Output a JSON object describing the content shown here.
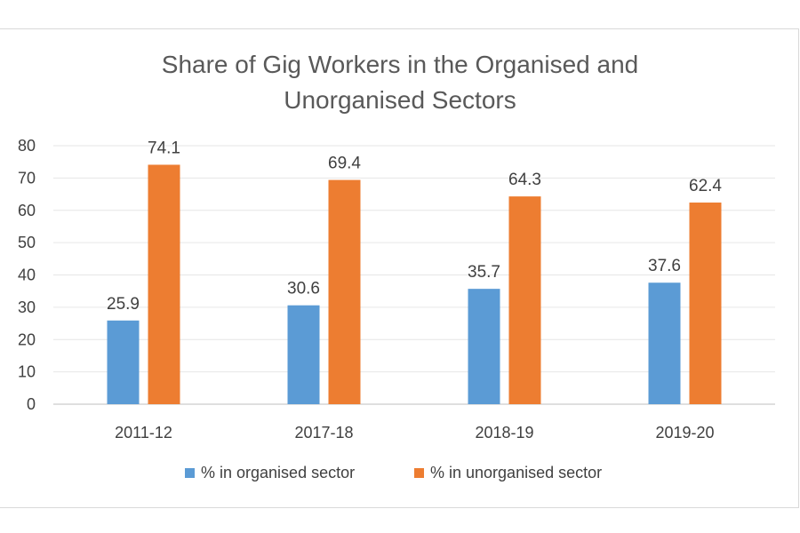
{
  "chart_data": {
    "type": "bar",
    "title_lines": [
      "Share of Gig Workers in the Organised and",
      "Unorganised Sectors"
    ],
    "categories": [
      "2011-12",
      "2017-18",
      "2018-19",
      "2019-20"
    ],
    "series": [
      {
        "name": "% in organised sector",
        "color": "#5b9bd5",
        "values": [
          25.9,
          30.6,
          35.7,
          37.6
        ]
      },
      {
        "name": "% in unorganised sector",
        "color": "#ed7d31",
        "values": [
          74.1,
          69.4,
          64.3,
          62.4
        ]
      }
    ],
    "ylim": [
      0,
      80
    ],
    "yticks": [
      "0",
      "10",
      "20",
      "30",
      "40",
      "50",
      "60",
      "70",
      "80"
    ],
    "grid": true,
    "legend_position": "bottom"
  }
}
